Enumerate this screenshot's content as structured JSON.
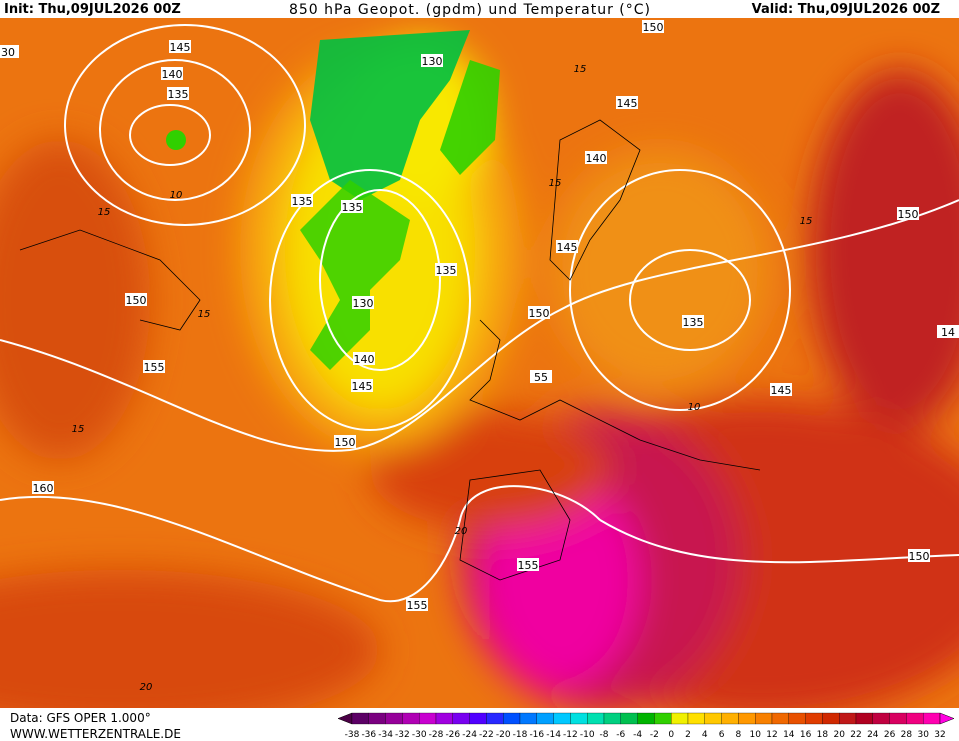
{
  "header": {
    "init": "Init: Thu,09JUL2026 00Z",
    "title": "850 hPa Geopot. (gpdm) und Temperatur (°C)",
    "valid": "Valid: Thu,09JUL2026 00Z"
  },
  "footer": {
    "source": "Data: GFS OPER 1.000°",
    "site": "WWW.WETTERZENTRALE.DE"
  },
  "map": {
    "isobar_labels": [
      "145",
      "140",
      "135",
      "130",
      "135",
      "135",
      "135",
      "130",
      "140",
      "145",
      "150",
      "150",
      "155",
      "160",
      "155",
      "155",
      "150",
      "55",
      "145",
      "140",
      "145",
      "150",
      "150",
      "135",
      "145",
      "150",
      "14",
      "30"
    ],
    "isotherm_labels": [
      "15",
      "10",
      "15",
      "15",
      "15",
      "15",
      "15",
      "10",
      "20",
      "20"
    ]
  },
  "legend": {
    "labels": [
      -38,
      -36,
      -34,
      -32,
      -30,
      -28,
      -26,
      -24,
      -22,
      -20,
      -18,
      -16,
      -14,
      -12,
      -10,
      -8,
      -6,
      -4,
      -2,
      0,
      2,
      4,
      6,
      8,
      10,
      12,
      14,
      16,
      18,
      20,
      22,
      24,
      26,
      28,
      30,
      32
    ],
    "colors": [
      "#4b0046",
      "#5c0066",
      "#7a0080",
      "#96009a",
      "#b000b4",
      "#c800d0",
      "#a000e0",
      "#7800f0",
      "#5000ff",
      "#2828ff",
      "#0050ff",
      "#0078ff",
      "#00a0ff",
      "#00c8ff",
      "#00e0e0",
      "#00e0b0",
      "#00d080",
      "#00c050",
      "#00b400",
      "#30d000",
      "#f0f000",
      "#ffe000",
      "#ffc800",
      "#ffb000",
      "#ff9800",
      "#f88000",
      "#f06800",
      "#e85000",
      "#e03c00",
      "#d02800",
      "#c01818",
      "#b00020",
      "#c00040",
      "#d80060",
      "#f00080",
      "#ff00b0",
      "#ff00e0"
    ]
  }
}
